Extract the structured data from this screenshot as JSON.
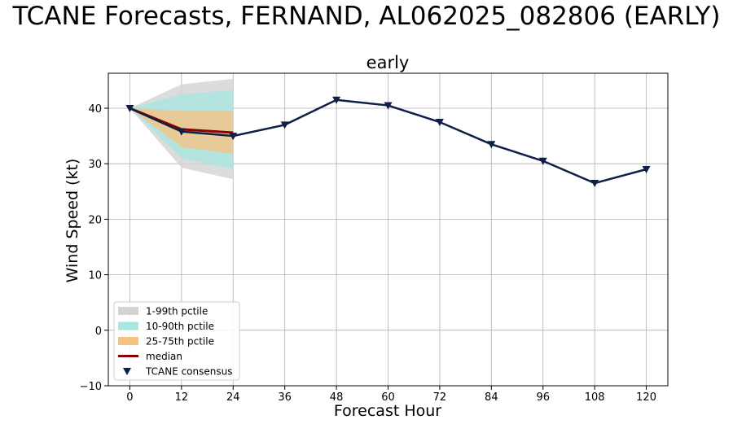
{
  "chart_data": {
    "type": "line",
    "suptitle": "TCANE Forecasts, FERNAND, AL062025_082806 (EARLY)",
    "title": "early",
    "xlabel": "Forecast Hour",
    "ylabel": "Wind Speed (kt)",
    "xlim": [
      -5,
      125
    ],
    "ylim": [
      -10,
      46.3
    ],
    "xticks": [
      0,
      12,
      24,
      36,
      48,
      60,
      72,
      84,
      96,
      108,
      120
    ],
    "yticks": [
      -10,
      0,
      10,
      20,
      30,
      40
    ],
    "grid": true,
    "legend_position": "lower-left",
    "bands": [
      {
        "name": "1-99th pctile",
        "color": "#d3d3d3",
        "x": [
          0,
          12,
          24
        ],
        "lower": [
          40,
          29.3,
          27.2
        ],
        "upper": [
          40,
          44.3,
          45.3
        ]
      },
      {
        "name": "10-90th pctile",
        "color": "#aae6e0",
        "x": [
          0,
          12,
          24
        ],
        "lower": [
          40,
          31.0,
          29.0
        ],
        "upper": [
          40,
          42.5,
          43.3
        ]
      },
      {
        "name": "25-75th pctile",
        "color": "#f4c384",
        "x": [
          0,
          12,
          24
        ],
        "lower": [
          40,
          33.0,
          31.8
        ],
        "upper": [
          40,
          39.5,
          39.5
        ]
      }
    ],
    "series": [
      {
        "name": "median",
        "color": "#8b0000",
        "x": [
          0,
          12,
          24
        ],
        "values": [
          40,
          36.2,
          35.6
        ]
      },
      {
        "name": "TCANE consensus",
        "color": "#0f1f45",
        "x": [
          0,
          12,
          24,
          36,
          48,
          60,
          72,
          84,
          96,
          108,
          120
        ],
        "values": [
          40,
          35.8,
          35.0,
          37.0,
          41.5,
          40.5,
          37.5,
          33.5,
          30.5,
          26.5,
          29.0
        ]
      }
    ]
  }
}
